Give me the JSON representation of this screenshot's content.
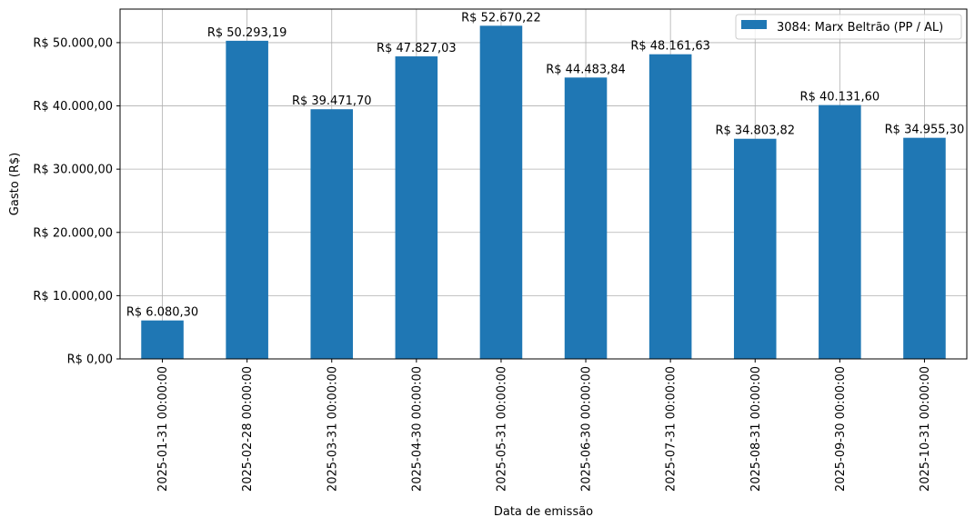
{
  "chart_data": {
    "type": "bar",
    "title": "",
    "xlabel": "Data de emissão",
    "ylabel": "Gasto (R$)",
    "categories": [
      "2025-01-31 00:00:00",
      "2025-02-28 00:00:00",
      "2025-03-31 00:00:00",
      "2025-04-30 00:00:00",
      "2025-05-31 00:00:00",
      "2025-06-30 00:00:00",
      "2025-07-31 00:00:00",
      "2025-08-31 00:00:00",
      "2025-09-30 00:00:00",
      "2025-10-31 00:00:00"
    ],
    "series": [
      {
        "name": "3084: Marx Beltrão (PP / AL)",
        "color": "#1f77b4",
        "values": [
          6080.3,
          50293.19,
          39471.7,
          47827.03,
          52670.22,
          44483.84,
          48161.63,
          34803.82,
          40131.6,
          34955.3
        ]
      }
    ],
    "data_labels": [
      "R$ 6.080,30",
      "R$ 50.293,19",
      "R$ 39.471,70",
      "R$ 47.827,03",
      "R$ 52.670,22",
      "R$ 44.483,84",
      "R$ 48.161,63",
      "R$ 34.803,82",
      "R$ 40.131,60",
      "R$ 34.955,30"
    ],
    "y_ticks": [
      0,
      10000,
      20000,
      30000,
      40000,
      50000
    ],
    "y_tick_labels": [
      "R$ 0,00",
      "R$ 10.000,00",
      "R$ 20.000,00",
      "R$ 30.000,00",
      "R$ 40.000,00",
      "R$ 50.000,00"
    ],
    "ylim": [
      0,
      55303.73
    ],
    "grid": true,
    "legend_position": "top-right"
  }
}
